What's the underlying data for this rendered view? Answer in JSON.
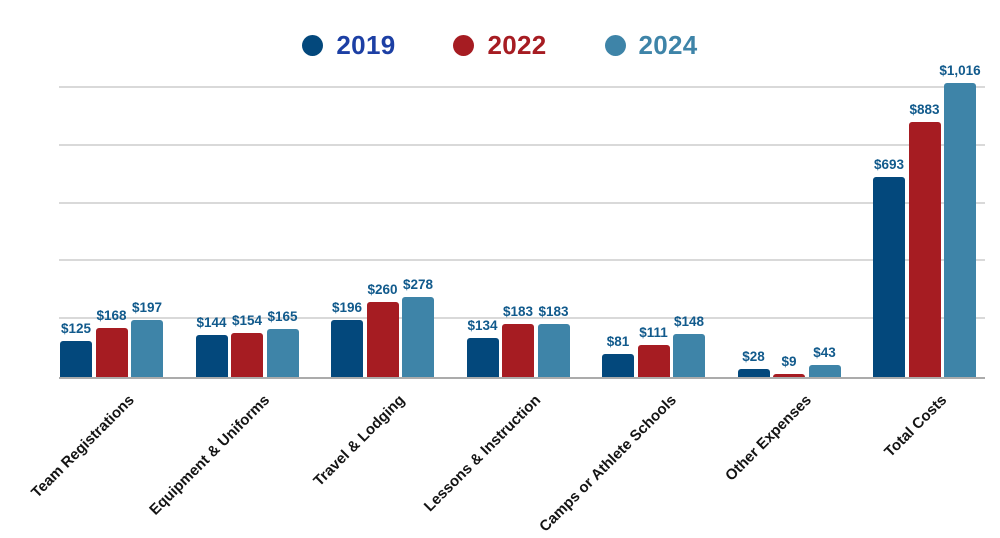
{
  "legend": {
    "items": [
      {
        "label": "2019",
        "dot_color": "#03487C",
        "text_color": "#1C3FA4"
      },
      {
        "label": "2022",
        "dot_color": "#A61C22",
        "text_color": "#A61C22"
      },
      {
        "label": "2024",
        "dot_color": "#3E84A8",
        "text_color": "#3E84A8"
      }
    ]
  },
  "chart_data": {
    "type": "bar",
    "title": "",
    "xlabel": "",
    "ylabel": "",
    "categories": [
      "Team Registrations",
      "Equipment & Uniforms",
      "Travel & Lodging",
      "Lessons & Instruction",
      "Camps or Athlete Schools",
      "Other Expenses",
      "Total Costs"
    ],
    "series": [
      {
        "name": "2019",
        "color": "#03487C",
        "values": [
          125,
          144,
          196,
          134,
          81,
          28,
          693
        ],
        "display_labels": [
          "$125",
          "$144",
          "$196",
          "$134",
          "$81",
          "$28",
          "$693"
        ]
      },
      {
        "name": "2022",
        "color": "#A61C22",
        "values": [
          168,
          154,
          260,
          183,
          111,
          9,
          883
        ],
        "display_labels": [
          "$168",
          "$154",
          "$260",
          "$183",
          "$111",
          "$9",
          "$883"
        ]
      },
      {
        "name": "2024",
        "color": "#3E84A8",
        "values": [
          197,
          165,
          278,
          183,
          148,
          43,
          1016
        ],
        "display_labels": [
          "$197",
          "$165",
          "$278",
          "$183",
          "$148",
          "$43",
          "$1,016"
        ]
      }
    ],
    "ylim": [
      0,
      1050
    ],
    "gridline_values": [
      200,
      400,
      600,
      800,
      1000
    ],
    "grid": true,
    "y_axis_labels_shown": false,
    "value_labels_shown": true,
    "legend_position": "top",
    "value_label_color": "#115A8C",
    "gridline_color": "#d9d9d9",
    "axis_line_color": "#ababab",
    "category_label_color": "#141414",
    "category_label_rotation_deg": -45
  }
}
